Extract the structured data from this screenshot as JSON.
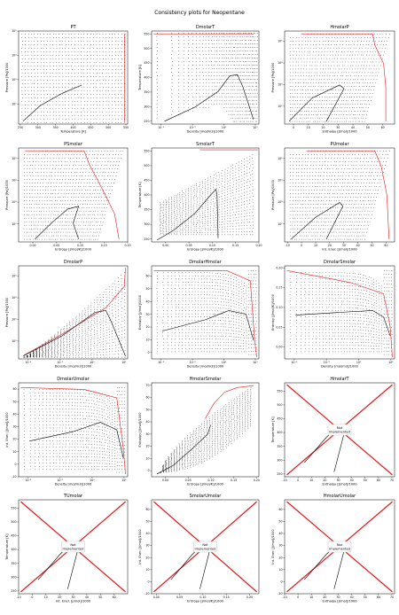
{
  "suptitle": "Consistency plots for Neopentane",
  "colors": {
    "data": "#000000",
    "boundary": "#e41a1c",
    "frame": "#000000",
    "box": "#cccccc"
  },
  "chart_data": [
    {
      "type": "scatter",
      "title": "PT",
      "xlabel": "Temperature [K]",
      "ylabel": "Pressure [Pa]/1000",
      "xscale": "linear",
      "yscale": "log",
      "xlim": [
        245,
        555
      ],
      "ylim": [
        15,
        100000
      ],
      "xticks": [
        "250",
        "300",
        "350",
        "400",
        "450",
        "500",
        "550"
      ],
      "yticks": [
        "10²",
        "10³",
        "10⁴",
        "10⁵"
      ],
      "shape": "pt"
    },
    {
      "type": "scatter",
      "title": "DmolarT",
      "xlabel": "Density [mol/m3]/1000",
      "ylabel": "Temperature [K]",
      "xscale": "log",
      "yscale": "linear",
      "xlim": [
        0.005,
        13
      ],
      "ylim": [
        240,
        560
      ],
      "xticks": [
        "10⁻²",
        "10⁻¹",
        "10⁰",
        "10¹"
      ],
      "yticks": [
        "250",
        "300",
        "350",
        "400",
        "450",
        "500",
        "550"
      ],
      "shape": "dt"
    },
    {
      "type": "scatter",
      "title": "HmolarP",
      "xlabel": "Enthalpy [J/mol]/1000",
      "ylabel": "Pressure [Pa]/1000",
      "xscale": "linear",
      "yscale": "log",
      "xlim": [
        -6,
        68
      ],
      "ylim": [
        15,
        300000
      ],
      "xticks": [
        "0",
        "10",
        "20",
        "30",
        "40",
        "50",
        "60"
      ],
      "yticks": [
        "10²",
        "10³",
        "10⁴",
        "10⁵"
      ],
      "shape": "hp"
    },
    {
      "type": "scatter",
      "title": "PSmolar",
      "xlabel": "Entropy [J/mol/K]/1000",
      "ylabel": "Pressure [Pa]/1000",
      "xscale": "linear",
      "yscale": "log",
      "xlim": [
        -0.03,
        0.2
      ],
      "ylim": [
        15,
        300000
      ],
      "xticks": [
        "0.00",
        "0.05",
        "0.10",
        "0.15",
        "0.20"
      ],
      "yticks": [
        "10²",
        "10³",
        "10⁴",
        "10⁵"
      ],
      "shape": "sp"
    },
    {
      "type": "scatter",
      "title": "SmolarT",
      "xlabel": "Entropy [J/mol/K]/1000",
      "ylabel": "Temperature [K]",
      "xscale": "linear",
      "yscale": "linear",
      "xlim": [
        -0.03,
        0.2
      ],
      "ylim": [
        240,
        560
      ],
      "xticks": [
        "0.00",
        "0.05",
        "0.10",
        "0.15",
        "0.20"
      ],
      "yticks": [
        "250",
        "300",
        "350",
        "400",
        "450",
        "500",
        "550"
      ],
      "shape": "st"
    },
    {
      "type": "scatter",
      "title": "PUmolar",
      "xlabel": "Int. Ener. [J/mol]/1000",
      "ylabel": "Pressure [Pa]/1000",
      "xscale": "linear",
      "yscale": "log",
      "xlim": [
        -12,
        66
      ],
      "ylim": [
        15,
        300000
      ],
      "xticks": [
        "-10",
        "0",
        "10",
        "20",
        "30",
        "40",
        "50",
        "60"
      ],
      "yticks": [
        "10²",
        "10³",
        "10⁴",
        "10⁵"
      ],
      "shape": "up"
    },
    {
      "type": "scatter",
      "title": "DmolarP",
      "xlabel": "Density [mol/m3]/1000",
      "ylabel": "Pressure [Pa]/1000",
      "xscale": "log",
      "yscale": "log",
      "xlim": [
        0.005,
        13
      ],
      "ylim": [
        15,
        300000
      ],
      "xticks": [
        "10⁻²",
        "10⁻¹",
        "10⁰",
        "10¹"
      ],
      "yticks": [
        "10²",
        "10³",
        "10⁴",
        "10⁵"
      ],
      "shape": "dp"
    },
    {
      "type": "scatter",
      "title": "DmolarHmolar",
      "xlabel": "Density [mol/m3]/1000",
      "ylabel": "Enthalpy [J/mol]/1000",
      "xscale": "log",
      "yscale": "linear",
      "xlim": [
        0.005,
        13
      ],
      "ylim": [
        -5,
        68
      ],
      "xticks": [
        "10⁻²",
        "10⁻¹",
        "10⁰",
        "10¹"
      ],
      "yticks": [
        "0",
        "10",
        "20",
        "30",
        "40",
        "50",
        "60"
      ],
      "shape": "dh"
    },
    {
      "type": "scatter",
      "title": "DmolarSmolar",
      "xlabel": "Density [mol/m3]/1000",
      "ylabel": "Entropy [J/mol/K]/1000",
      "xscale": "log",
      "yscale": "linear",
      "xlim": [
        0.005,
        13
      ],
      "ylim": [
        -0.03,
        0.205
      ],
      "xticks": [
        "10⁻²",
        "10⁻¹",
        "10⁰",
        "10¹"
      ],
      "yticks": [
        "0.00",
        "0.05",
        "0.10",
        "0.15",
        "0.20"
      ],
      "shape": "ds"
    },
    {
      "type": "scatter",
      "title": "DmolarUmolar",
      "xlabel": "Density [mol/m3]/1000",
      "ylabel": "Int. Ener. [J/mol]/1000",
      "xscale": "log",
      "yscale": "linear",
      "xlim": [
        0.005,
        13
      ],
      "ylim": [
        -10,
        65
      ],
      "xticks": [
        "10⁻²",
        "10⁻¹",
        "10⁰",
        "10¹"
      ],
      "yticks": [
        "-10",
        "0",
        "10",
        "20",
        "30",
        "40",
        "50",
        "60"
      ],
      "shape": "du"
    },
    {
      "type": "scatter",
      "title": "HmolarSmolar",
      "xlabel": "Entropy [J/mol/K]/1000",
      "ylabel": "Enthalpy [J/mol]/1000",
      "xscale": "linear",
      "yscale": "linear",
      "xlim": [
        -0.03,
        0.205
      ],
      "ylim": [
        -5,
        72
      ],
      "xticks": [
        "0.00",
        "0.05",
        "0.10",
        "0.15",
        "0.20"
      ],
      "yticks": [
        "0",
        "10",
        "20",
        "30",
        "40",
        "50",
        "60",
        "70"
      ],
      "shape": "sh"
    },
    {
      "type": "scatter",
      "title": "HmolarT",
      "xlabel": "Enthalpy [J/mol]/1000",
      "ylabel": "Temperature [K]",
      "xscale": "linear",
      "yscale": "linear",
      "xlim": [
        -10,
        72
      ],
      "ylim": [
        240,
        580
      ],
      "xticks": [
        "-10",
        "0",
        "10",
        "20",
        "30",
        "40",
        "50",
        "60",
        "70"
      ],
      "yticks": [
        "250",
        "300",
        "350",
        "400",
        "450",
        "500",
        "550"
      ],
      "shape": "ni",
      "note": "Not\nimplemented"
    },
    {
      "type": "scatter",
      "title": "TUmolar",
      "xlabel": "Int. Ener. [J/mol]/1000",
      "ylabel": "Temperature [K]",
      "xscale": "linear",
      "yscale": "linear",
      "xlim": [
        -10,
        70
      ],
      "ylim": [
        240,
        580
      ],
      "xticks": [
        "-10",
        "0",
        "10",
        "20",
        "30",
        "40",
        "50",
        "60"
      ],
      "yticks": [
        "250",
        "300",
        "350",
        "400",
        "450",
        "500",
        "550"
      ],
      "shape": "ni",
      "note": "Not\nImplemented"
    },
    {
      "type": "scatter",
      "title": "SmolarUmolar",
      "xlabel": "Entropy [J/mol/K]/1000",
      "ylabel": "Int. Ener. [J/mol]/1000",
      "xscale": "linear",
      "yscale": "linear",
      "xlim": [
        -0.01,
        0.22
      ],
      "ylim": [
        -10,
        68
      ],
      "xticks": [
        "0.00",
        "0.05",
        "0.10",
        "0.15",
        "0.20"
      ],
      "yticks": [
        "-10",
        "0",
        "10",
        "20",
        "30",
        "40",
        "50",
        "60"
      ],
      "shape": "ni",
      "note": "Not\nImplemented"
    },
    {
      "type": "scatter",
      "title": "HmolarUmolar",
      "xlabel": "Enthalpy [J/mol]/1000",
      "ylabel": "Int. Ener. [J/mol]/1000",
      "xscale": "linear",
      "yscale": "linear",
      "xlim": [
        -10,
        72
      ],
      "ylim": [
        -10,
        68
      ],
      "xticks": [
        "-10",
        "0",
        "10",
        "20",
        "30",
        "40",
        "50",
        "60",
        "70"
      ],
      "yticks": [
        "-10",
        "0",
        "10",
        "20",
        "30",
        "40",
        "50",
        "60"
      ],
      "shape": "ni",
      "note": "Not\nImplemented"
    }
  ]
}
